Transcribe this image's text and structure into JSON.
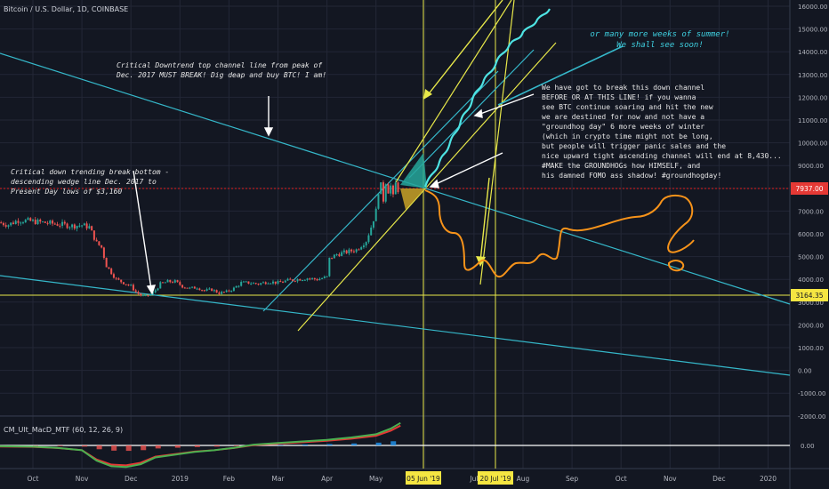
{
  "chart_title": "Bitcoin / U.S. Dollar, 1D, COINBASE",
  "price_axis": {
    "ticks": [
      "16000.00",
      "15000.00",
      "14000.00",
      "13000.00",
      "12000.00",
      "11000.00",
      "10000.00",
      "9000.00",
      "8000.00",
      "7000.00",
      "6000.00",
      "5000.00",
      "4000.00",
      "3000.00",
      "2000.00",
      "1000.00",
      "0.00",
      "-1000.00",
      "-2000.00"
    ],
    "current_price": "7937.00",
    "level_price": "3164.35"
  },
  "time_axis": {
    "labels": [
      {
        "t": "Oct",
        "v": 0
      },
      {
        "t": "Nov",
        "v": 1
      },
      {
        "t": "Dec",
        "v": 2
      },
      {
        "t": "2019",
        "v": 3
      },
      {
        "t": "Feb",
        "v": 4
      },
      {
        "t": "Mar",
        "v": 5
      },
      {
        "t": "Apr",
        "v": 6
      },
      {
        "t": "May",
        "v": 7
      },
      {
        "t": "Jul",
        "v": 9
      },
      {
        "t": "Aug",
        "v": 10
      },
      {
        "t": "Sep",
        "v": 11
      },
      {
        "t": "Oct",
        "v": 12
      },
      {
        "t": "Nov",
        "v": 13
      },
      {
        "t": "Dec",
        "v": 14
      },
      {
        "t": "2020",
        "v": 15
      }
    ],
    "highlight_1": "05 Jun '19",
    "highlight_2": "20 Jul '19"
  },
  "indicator": {
    "title": "CM_Ult_MacD_MTF (60, 12, 26, 9)",
    "zero_label": "0.00"
  },
  "annotations": {
    "downtrend_note": "Critical Downtrend top channel line from peak of\nDec. 2017 MUST BREAK! Dig deap and buy BTC! I am!",
    "wedge_note": "Critical down trending break bottom -\ndescending wedge line Dec. 2017 to\nPresent Day lows of $3,160",
    "summer_note": "or many more weeks of summer!\nWe shall see soon!",
    "main_note": "We have got to break this down channel\nBEFORE OR AT THIS LINE!  if you wanna\nsee BTC continue soaring and hit the new\nwe are destined for now and not have a\n\"groundhog day\" 6 more weeks of winter\n(which in crypto time might not be long,\nbut people will trigger panic sales and the\nnice upward tight ascending channel will end at 8,430...\n#MAKE the GROUNDHOGs how HIMSELF, and\nhis damned FOMO ass shadow! #groundhogday!"
  },
  "colors": {
    "background": "#131722",
    "grid": "#232736",
    "up": "#26a69a",
    "down": "#ef5350",
    "cyan_line": "#35b7c9",
    "yellow_line": "#e8e84a",
    "orange_path": "#f7931a",
    "bull_path": "#4ee3e3",
    "red_level": "#b71c1c",
    "macd_green": "#4caf50",
    "macd_red": "#e53935",
    "note_text": "#e6e6e6",
    "summer_text": "#3fd0e0",
    "tag_yellow": "#f5e642",
    "tag_red": "#e53935"
  },
  "chart_data": {
    "type": "line",
    "title": "Bitcoin / U.S. Dollar, 1D, COINBASE",
    "xlabel": "",
    "ylabel": "",
    "ylim": [
      -2000,
      16000
    ],
    "x_unit": "month index (0 = Oct 2018)",
    "price_series": [
      [
        -0.7,
        6500
      ],
      [
        -0.5,
        6400
      ],
      [
        -0.3,
        6600
      ],
      [
        0.0,
        6550
      ],
      [
        0.2,
        6500
      ],
      [
        0.4,
        6450
      ],
      [
        0.6,
        6400
      ],
      [
        0.8,
        6350
      ],
      [
        1.0,
        6380
      ],
      [
        1.15,
        6300
      ],
      [
        1.3,
        5600
      ],
      [
        1.4,
        5400
      ],
      [
        1.5,
        4600
      ],
      [
        1.6,
        4300
      ],
      [
        1.7,
        4000
      ],
      [
        1.8,
        3900
      ],
      [
        1.9,
        3800
      ],
      [
        2.0,
        3700
      ],
      [
        2.1,
        3450
      ],
      [
        2.2,
        3300
      ],
      [
        2.3,
        3250
      ],
      [
        2.45,
        3400
      ],
      [
        2.6,
        3800
      ],
      [
        2.75,
        3900
      ],
      [
        2.9,
        3900
      ],
      [
        3.05,
        3700
      ],
      [
        3.2,
        3600
      ],
      [
        3.35,
        3650
      ],
      [
        3.5,
        3500
      ],
      [
        3.65,
        3550
      ],
      [
        3.8,
        3400
      ],
      [
        3.95,
        3450
      ],
      [
        4.1,
        3600
      ],
      [
        4.25,
        3850
      ],
      [
        4.4,
        3850
      ],
      [
        4.6,
        3800
      ],
      [
        4.8,
        3900
      ],
      [
        5.0,
        3850
      ],
      [
        5.2,
        3950
      ],
      [
        5.4,
        4000
      ],
      [
        5.6,
        4050
      ],
      [
        5.8,
        4000
      ],
      [
        6.0,
        4100
      ],
      [
        6.05,
        4900
      ],
      [
        6.2,
        5100
      ],
      [
        6.4,
        5200
      ],
      [
        6.6,
        5300
      ],
      [
        6.8,
        5700
      ],
      [
        6.9,
        6300
      ],
      [
        7.0,
        7000
      ],
      [
        7.05,
        7900
      ],
      [
        7.1,
        8100
      ],
      [
        7.15,
        7500
      ],
      [
        7.2,
        8300
      ],
      [
        7.25,
        7900
      ],
      [
        7.3,
        8100
      ],
      [
        7.35,
        7600
      ],
      [
        7.4,
        8200
      ],
      [
        7.45,
        7950
      ]
    ],
    "macd_series": [
      [
        -0.7,
        -20
      ],
      [
        0.0,
        -30
      ],
      [
        0.5,
        -60
      ],
      [
        1.0,
        -120
      ],
      [
        1.3,
        -380
      ],
      [
        1.6,
        -520
      ],
      [
        1.9,
        -540
      ],
      [
        2.2,
        -470
      ],
      [
        2.5,
        -300
      ],
      [
        2.9,
        -230
      ],
      [
        3.3,
        -160
      ],
      [
        3.7,
        -120
      ],
      [
        4.1,
        -60
      ],
      [
        4.5,
        20
      ],
      [
        5.0,
        60
      ],
      [
        5.5,
        100
      ],
      [
        6.0,
        140
      ],
      [
        6.5,
        200
      ],
      [
        7.0,
        280
      ],
      [
        7.3,
        420
      ],
      [
        7.5,
        560
      ]
    ],
    "levels": [
      {
        "name": "current",
        "value": 7937.0
      },
      {
        "name": "support",
        "value": 3164.35
      }
    ]
  }
}
